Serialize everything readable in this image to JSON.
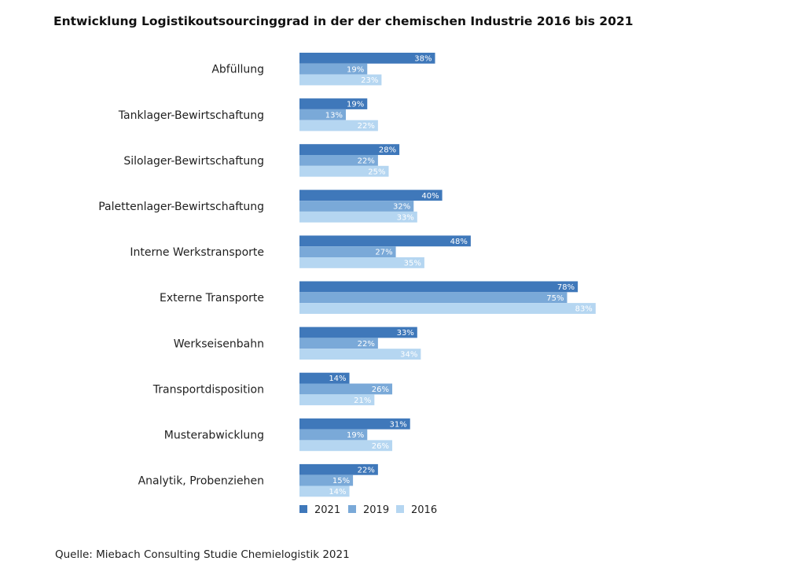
{
  "chart_data": {
    "type": "bar",
    "orientation": "horizontal",
    "title": "Entwicklung Logistikoutsourcinggrad in der der chemischen Industrie 2016 bis 2021",
    "categories": [
      "Abfüllung",
      "Tanklager-Bewirtschaftung",
      "Silolager-Bewirtschaftung",
      "Palettenlager-Bewirtschaftung",
      "Interne Werkstransporte",
      "Externe Transporte",
      "Werkseisenbahn",
      "Transportdisposition",
      "Musterabwicklung",
      "Analytik, Probenziehen"
    ],
    "series": [
      {
        "name": "2021",
        "color": "#3f78ba",
        "values": [
          38,
          19,
          28,
          40,
          48,
          78,
          33,
          14,
          31,
          22
        ]
      },
      {
        "name": "2019",
        "color": "#7aa9d8",
        "values": [
          19,
          13,
          22,
          32,
          27,
          75,
          22,
          26,
          19,
          15
        ]
      },
      {
        "name": "2016",
        "color": "#b5d6f1",
        "values": [
          23,
          22,
          25,
          33,
          35,
          83,
          34,
          21,
          26,
          14
        ]
      }
    ],
    "value_suffix": "%",
    "xlim": [
      0,
      100
    ],
    "grid": false,
    "legend_position": "bottom"
  },
  "source": "Quelle: Miebach Consulting Studie Chemielogistik 2021"
}
